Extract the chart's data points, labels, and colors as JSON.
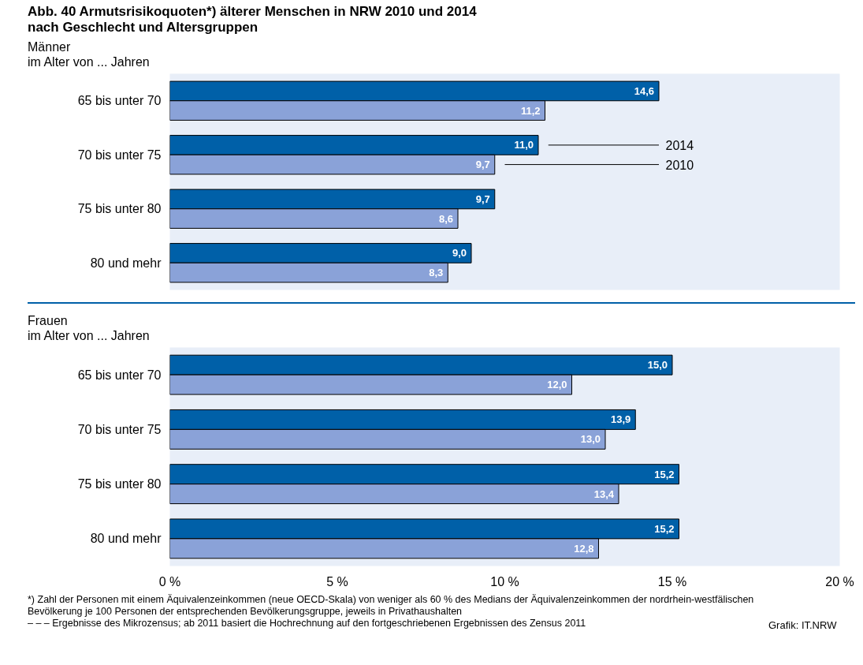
{
  "chart_data": [
    {
      "type": "bar",
      "orientation": "horizontal",
      "title": "Abb. 40  Armutsrisikoquoten*) älterer Menschen in NRW 2010 und 2014\nnach Geschlecht und Altersgruppen",
      "ylabel": "Männer\nim Alter von ... Jahren",
      "categories": [
        "65 bis unter 70",
        "70 bis unter 75",
        "75 bis unter 80",
        "80 und mehr"
      ],
      "series": [
        {
          "name": "2014",
          "color": "#0060a8",
          "values": [
            14.6,
            11.0,
            9.7,
            9.0
          ],
          "value_labels": [
            "14,6",
            "11,0",
            "9,7",
            "9,0"
          ]
        },
        {
          "name": "2010",
          "color": "#8aa2d8",
          "values": [
            11.2,
            9.7,
            8.6,
            8.3
          ],
          "value_labels": [
            "11,2",
            "9,7",
            "8,6",
            "8,3"
          ]
        }
      ],
      "xlim": [
        0,
        20
      ],
      "tick_labels": "y",
      "grid": false,
      "legend": "right"
    },
    {
      "type": "bar",
      "orientation": "horizontal",
      "ylabel": "Frauen\nim Alter von ... Jahren",
      "categories": [
        "65 bis unter 70",
        "70 bis unter 75",
        "75 bis unter 80",
        "80 und mehr"
      ],
      "series": [
        {
          "color": "#0060a8",
          "values": [
            15.0,
            13.9,
            15.2,
            15.2
          ],
          "value_labels": [
            "15,0",
            "13,9",
            "15,2",
            "15,2"
          ]
        },
        {
          "color": "#8aa2d8",
          "values": [
            12.0,
            13.0,
            13.4,
            12.8
          ],
          "value_labels": [
            "12,0",
            "13,0",
            "13,4",
            "12,8"
          ]
        }
      ],
      "xlim": [
        0,
        20
      ],
      "xticks": [
        {
          "value": 0,
          "label": "0 %"
        },
        {
          "value": 5,
          "label": "5 %"
        },
        {
          "value": 10,
          "label": "10 %"
        },
        {
          "value": 15,
          "label": "15 %"
        },
        {
          "value": 20,
          "label": "20 %"
        }
      ],
      "grid": false,
      "annotations": [
        "*) Zahl der Personen mit einem Äquivalenzeinkommen (neue OECD-Skala) von weniger als 60 % des Medians der Äquivalenzeinkommen der nordrhein-westfälischen Bevölkerung je 100 Personen der entsprechenden Bevölkerungsgruppe, jeweils in Privathaushalten\n– – – Ergebnisse des Mikrozensus; ab 2011 basiert die Hochrechnung auf den fortgeschriebenen Ergebnissen des Zensus 2011",
        "Grafik: IT.NRW"
      ]
    }
  ]
}
